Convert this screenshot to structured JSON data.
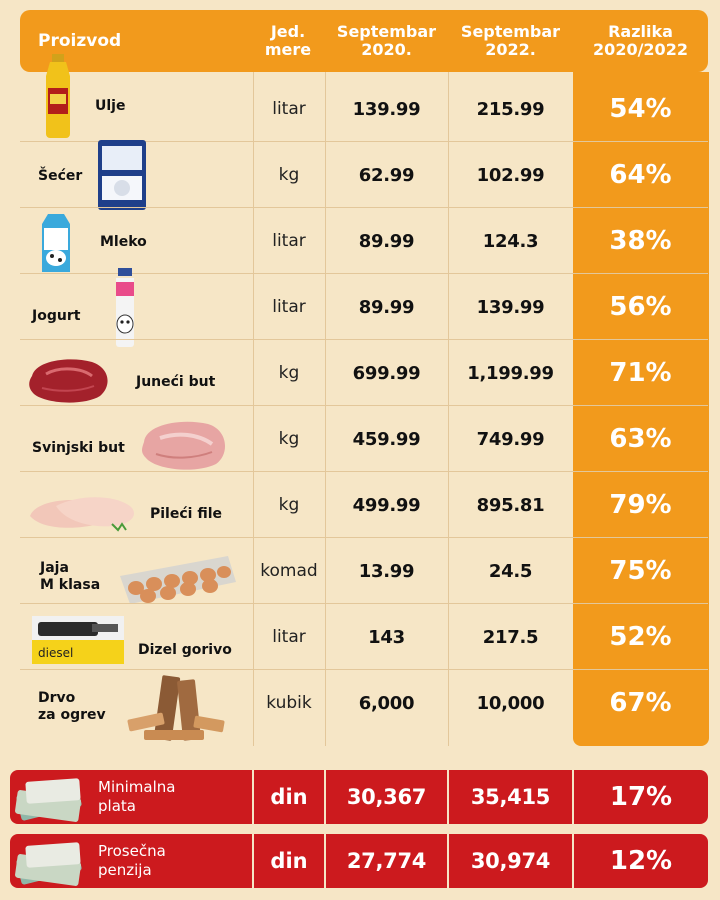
{
  "header": {
    "product": "Proizvod",
    "unit_line1": "Jed.",
    "unit_line2": "mere",
    "col2020_line1": "Septembar",
    "col2020_line2": "2020.",
    "col2022_line1": "Septembar",
    "col2022_line2": "2022.",
    "diff_line1": "Razlika",
    "diff_line2": "2020/2022"
  },
  "rows": [
    {
      "name_line1": "Ulje",
      "name_line2": "",
      "unit": "litar",
      "p2020": "139.99",
      "p2022": "215.99",
      "diff": "54%",
      "icon": "oil-bottle-icon"
    },
    {
      "name_line1": "Šećer",
      "name_line2": "",
      "unit": "kg",
      "p2020": "62.99",
      "p2022": "102.99",
      "diff": "64%",
      "icon": "sugar-bag-icon"
    },
    {
      "name_line1": "Mleko",
      "name_line2": "",
      "unit": "litar",
      "p2020": "89.99",
      "p2022": "124.3",
      "diff": "38%",
      "icon": "milk-carton-icon"
    },
    {
      "name_line1": "Jogurt",
      "name_line2": "",
      "unit": "litar",
      "p2020": "89.99",
      "p2022": "139.99",
      "diff": "56%",
      "icon": "yogurt-bottle-icon"
    },
    {
      "name_line1": "Juneći but",
      "name_line2": "",
      "unit": "kg",
      "p2020": "699.99",
      "p2022": "1,199.99",
      "diff": "71%",
      "icon": "beef-icon"
    },
    {
      "name_line1": "Svinjski but",
      "name_line2": "",
      "unit": "kg",
      "p2020": "459.99",
      "p2022": "749.99",
      "diff": "63%",
      "icon": "pork-icon"
    },
    {
      "name_line1": "Pileći file",
      "name_line2": "",
      "unit": "kg",
      "p2020": "499.99",
      "p2022": "895.81",
      "diff": "79%",
      "icon": "chicken-fillet-icon"
    },
    {
      "name_line1": "Jaja",
      "name_line2": "M klasa",
      "unit": "komad",
      "p2020": "13.99",
      "p2022": "24.5",
      "diff": "75%",
      "icon": "egg-tray-icon"
    },
    {
      "name_line1": "Dizel gorivo",
      "name_line2": "",
      "unit": "litar",
      "p2020": "143",
      "p2022": "217.5",
      "diff": "52%",
      "icon": "diesel-nozzle-icon"
    },
    {
      "name_line1": "Drvo",
      "name_line2": "za ogrev",
      "unit": "kubik",
      "p2020": "6,000",
      "p2022": "10,000",
      "diff": "67%",
      "icon": "firewood-icon"
    }
  ],
  "income": [
    {
      "label_line1": "Minimalna",
      "label_line2": "plata",
      "unit": "din",
      "p2020": "30,367",
      "p2022": "35,415",
      "diff": "17%",
      "icon": "money-icon"
    },
    {
      "label_line1": "Prosečna",
      "label_line2": "penzija",
      "unit": "din",
      "p2020": "27,774",
      "p2022": "30,974",
      "diff": "12%",
      "icon": "money-icon"
    }
  ],
  "colors": {
    "orange": "#f29a1c",
    "red": "#cc1a1e",
    "background": "#f6e6c6"
  },
  "icon_text": {
    "diesel_label": "diesel"
  }
}
